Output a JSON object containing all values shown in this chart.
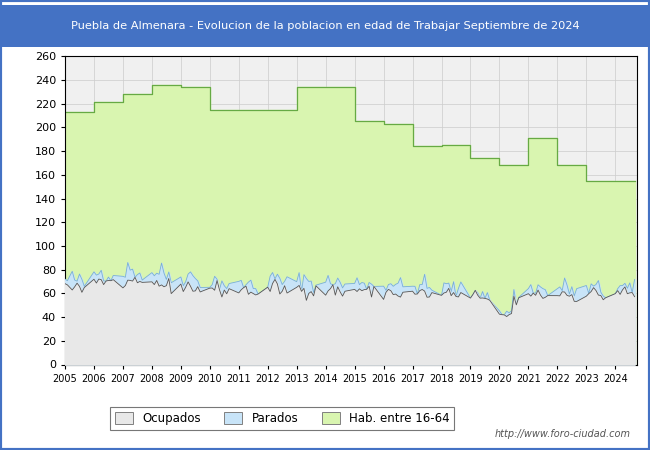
{
  "title": "Puebla de Almenara - Evolucion de la poblacion en edad de Trabajar Septiembre de 2024",
  "title_bg": "#4472c4",
  "title_color": "white",
  "ylim": [
    0,
    260
  ],
  "yticks": [
    0,
    20,
    40,
    60,
    80,
    100,
    120,
    140,
    160,
    180,
    200,
    220,
    240,
    260
  ],
  "color_hab": "#d9f5b0",
  "color_hab_line": "#66aa44",
  "color_parados": "#c8e4f8",
  "color_parados_line": "#7ab0d4",
  "color_ocupados": "#e8e8e8",
  "color_ocupados_line": "#555555",
  "legend_labels": [
    "Ocupados",
    "Parados",
    "Hab. entre 16-64"
  ],
  "url_text": "http://www.foro-ciudad.com",
  "plot_bg": "#f0f0f0",
  "grid_color": "#cccccc",
  "border_color": "#4472c4",
  "hab_annual": {
    "2005": 213,
    "2006": 221,
    "2007": 228,
    "2008": 236,
    "2009": 234,
    "2010": 215,
    "2011": 215,
    "2012": 215,
    "2013": 234,
    "2014": 234,
    "2015": 205,
    "2016": 203,
    "2017": 184,
    "2018": 185,
    "2019": 174,
    "2020": 168,
    "2021": 191,
    "2022": 168,
    "2023": 155,
    "2024": 155
  }
}
